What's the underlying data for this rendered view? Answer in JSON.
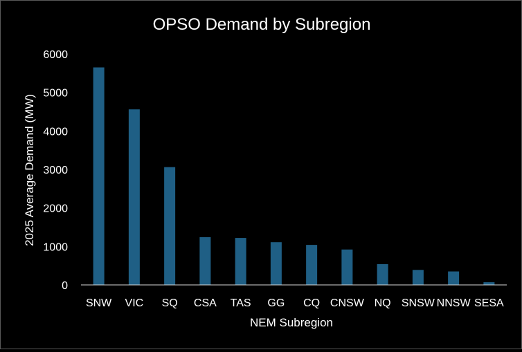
{
  "chart_data": {
    "type": "bar",
    "title": "OPSO Demand by Subregion",
    "xlabel": "NEM Subregion",
    "ylabel": "2025 Average Demand (MW)",
    "categories": [
      "SNW",
      "VIC",
      "SQ",
      "CSA",
      "TAS",
      "GG",
      "CQ",
      "CNSW",
      "NQ",
      "SNSW",
      "NNSW",
      "SESA"
    ],
    "values": [
      5650,
      4560,
      3060,
      1240,
      1220,
      1110,
      1040,
      920,
      540,
      390,
      350,
      70
    ],
    "ylim": [
      0,
      6000
    ],
    "yticks": [
      "0",
      "1000",
      "2000",
      "3000",
      "4000",
      "5000",
      "6000"
    ],
    "grid": false,
    "legend": "none",
    "colors": {
      "background": "#000000",
      "bar": "#1f5f85",
      "text": "#ffffff",
      "axis": "#d9d9d9"
    }
  }
}
